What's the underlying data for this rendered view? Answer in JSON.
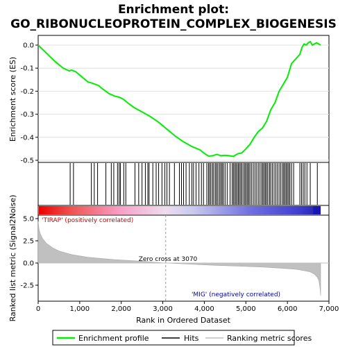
{
  "chart_data": {
    "type": "line",
    "title_line1": "Enrichment plot:",
    "title_line2": "GO_RIBONUCLEOPROTEIN_COMPLEX_BIOGENESIS",
    "es_ylabel": "Enrichment score (ES)",
    "rank_ylabel": "Ranked list metric (Signal2Noise)",
    "xlabel": "Rank in Ordered Dataset",
    "xlim": [
      0,
      7000
    ],
    "es_ylim": [
      -0.5,
      0.0
    ],
    "rank_ylim": [
      -4.0,
      5.0
    ],
    "x_ticks": [
      0,
      1000,
      2000,
      3000,
      4000,
      5000,
      6000,
      7000
    ],
    "x_tick_labels": [
      "0",
      "1,000",
      "2,000",
      "3,000",
      "4,000",
      "5,000",
      "6,000",
      "7,000"
    ],
    "es_ticks": [
      0.0,
      -0.1,
      -0.2,
      -0.3,
      -0.4,
      -0.5
    ],
    "es_tick_labels": [
      "0.0",
      "-0.1",
      "-0.2",
      "-0.3",
      "-0.4",
      "-0.5"
    ],
    "rank_ticks": [
      5.0,
      2.5,
      0.0,
      -2.5
    ],
    "rank_tick_labels": [
      "5.0",
      "2.5",
      "0.0",
      "-2.5"
    ],
    "positive_label": "'TIRAP' (positively correlated)",
    "negative_label": "'MIG' (negatively correlated)",
    "zero_cross_label": "Zero cross at 3070",
    "zero_cross": 3070,
    "n_genes": 6800,
    "series": [
      {
        "name": "Enrichment profile",
        "color": "#00ee00",
        "x": [
          0,
          200,
          400,
          600,
          750,
          800,
          900,
          1000,
          1200,
          1300,
          1450,
          1550,
          1700,
          1850,
          1950,
          2050,
          2150,
          2300,
          2500,
          2700,
          2900,
          3100,
          3300,
          3500,
          3700,
          3900,
          4000,
          4100,
          4200,
          4300,
          4400,
          4500,
          4600,
          4700,
          4800,
          4900,
          5000,
          5100,
          5200,
          5300,
          5400,
          5500,
          5600,
          5700,
          5800,
          5900,
          6000,
          6050,
          6100,
          6200,
          6300,
          6350,
          6400,
          6450,
          6500,
          6550,
          6600,
          6700,
          6750,
          6800
        ],
        "y": [
          0.0,
          -0.035,
          -0.07,
          -0.1,
          -0.112,
          -0.108,
          -0.115,
          -0.13,
          -0.16,
          -0.165,
          -0.175,
          -0.19,
          -0.21,
          -0.222,
          -0.226,
          -0.235,
          -0.25,
          -0.27,
          -0.29,
          -0.31,
          -0.335,
          -0.365,
          -0.395,
          -0.42,
          -0.44,
          -0.455,
          -0.47,
          -0.482,
          -0.48,
          -0.474,
          -0.48,
          -0.478,
          -0.48,
          -0.483,
          -0.472,
          -0.468,
          -0.45,
          -0.43,
          -0.4,
          -0.375,
          -0.36,
          -0.33,
          -0.28,
          -0.25,
          -0.2,
          -0.17,
          -0.14,
          -0.11,
          -0.08,
          -0.06,
          -0.04,
          -0.01,
          0.005,
          0.0,
          0.01,
          0.015,
          0.0,
          0.01,
          0.005,
          0.0
        ]
      },
      {
        "name": "Hits",
        "color": "#000000",
        "hit_ranks": [
          770,
          850,
          1280,
          1350,
          1430,
          1630,
          1760,
          1820,
          1910,
          1950,
          1980,
          2060,
          2110,
          2330,
          2420,
          2500,
          2580,
          2640,
          2670,
          2760,
          2840,
          2900,
          2980,
          3050,
          3100,
          3160,
          3280,
          3400,
          3450,
          3500,
          3560,
          3640,
          3700,
          3740,
          3800,
          3870,
          3930,
          3980,
          4060,
          4100,
          4130,
          4160,
          4200,
          4230,
          4270,
          4300,
          4330,
          4370,
          4400,
          4430,
          4460,
          4500,
          4550,
          4620,
          4670,
          4700,
          4730,
          4760,
          4790,
          4820,
          4850,
          4880,
          4910,
          4950,
          4980,
          5010,
          5040,
          5070,
          5100,
          5140,
          5180,
          5220,
          5260,
          5300,
          5340,
          5380,
          5410,
          5440,
          5470,
          5500,
          5530,
          5570,
          5600,
          5640,
          5680,
          5720,
          5760,
          5800,
          5840,
          5880,
          5910,
          5940,
          5970,
          6000,
          6030,
          6060,
          6100,
          6150,
          6300,
          6340,
          6380,
          6420,
          6470,
          6550,
          6720
        ]
      },
      {
        "name": "Ranking metric scores",
        "color": "#c0c0c0",
        "x": [
          0,
          20,
          50,
          100,
          200,
          350,
          500,
          800,
          1200,
          1800,
          2500,
          3070,
          3600,
          4200,
          4800,
          5400,
          5900,
          6200,
          6400,
          6550,
          6650,
          6720,
          6760,
          6790,
          6800
        ],
        "y": [
          4.7,
          3.8,
          3.3,
          2.8,
          2.2,
          1.7,
          1.35,
          0.95,
          0.65,
          0.4,
          0.2,
          0.0,
          -0.12,
          -0.25,
          -0.35,
          -0.45,
          -0.6,
          -0.7,
          -0.85,
          -1.0,
          -1.25,
          -1.6,
          -2.0,
          -3.0,
          -3.7
        ]
      }
    ],
    "legend": [
      "Enrichment profile",
      "Hits",
      "Ranking metric scores"
    ]
  }
}
